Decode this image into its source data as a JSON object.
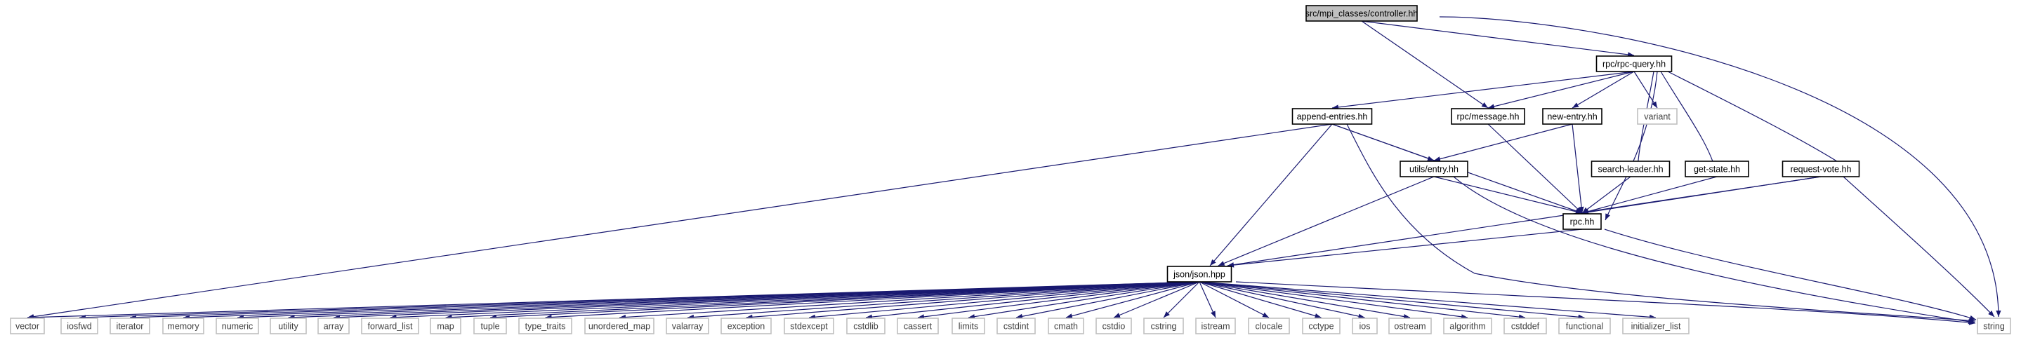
{
  "graph": {
    "edge_color": "#191970",
    "nodes": [
      {
        "id": "controller",
        "label": "src/mpi_classes/controller.hh",
        "kind": "focus"
      },
      {
        "id": "rpc_query",
        "label": "rpc/rpc-query.hh",
        "kind": "header"
      },
      {
        "id": "append_entries",
        "label": "append-entries.hh",
        "kind": "header"
      },
      {
        "id": "rpc_message",
        "label": "rpc/message.hh",
        "kind": "header"
      },
      {
        "id": "new_entry",
        "label": "new-entry.hh",
        "kind": "header"
      },
      {
        "id": "variant",
        "label": "variant",
        "kind": "external"
      },
      {
        "id": "utils_entry",
        "label": "utils/entry.hh",
        "kind": "header"
      },
      {
        "id": "search_leader",
        "label": "search-leader.hh",
        "kind": "header"
      },
      {
        "id": "get_state",
        "label": "get-state.hh",
        "kind": "header"
      },
      {
        "id": "request_vote",
        "label": "request-vote.hh",
        "kind": "header"
      },
      {
        "id": "rpc",
        "label": "rpc.hh",
        "kind": "header"
      },
      {
        "id": "json",
        "label": "json/json.hpp",
        "kind": "header"
      },
      {
        "id": "vector",
        "label": "vector",
        "kind": "external"
      },
      {
        "id": "iosfwd",
        "label": "iosfwd",
        "kind": "external"
      },
      {
        "id": "iterator",
        "label": "iterator",
        "kind": "external"
      },
      {
        "id": "memory",
        "label": "memory",
        "kind": "external"
      },
      {
        "id": "numeric",
        "label": "numeric",
        "kind": "external"
      },
      {
        "id": "utility",
        "label": "utility",
        "kind": "external"
      },
      {
        "id": "array",
        "label": "array",
        "kind": "external"
      },
      {
        "id": "forward_list",
        "label": "forward_list",
        "kind": "external"
      },
      {
        "id": "map",
        "label": "map",
        "kind": "external"
      },
      {
        "id": "tuple",
        "label": "tuple",
        "kind": "external"
      },
      {
        "id": "type_traits",
        "label": "type_traits",
        "kind": "external"
      },
      {
        "id": "unordered_map",
        "label": "unordered_map",
        "kind": "external"
      },
      {
        "id": "valarray",
        "label": "valarray",
        "kind": "external"
      },
      {
        "id": "exception",
        "label": "exception",
        "kind": "external"
      },
      {
        "id": "stdexcept",
        "label": "stdexcept",
        "kind": "external"
      },
      {
        "id": "cstdlib",
        "label": "cstdlib",
        "kind": "external"
      },
      {
        "id": "cassert",
        "label": "cassert",
        "kind": "external"
      },
      {
        "id": "limits",
        "label": "limits",
        "kind": "external"
      },
      {
        "id": "cstdint",
        "label": "cstdint",
        "kind": "external"
      },
      {
        "id": "cmath",
        "label": "cmath",
        "kind": "external"
      },
      {
        "id": "cstdio",
        "label": "cstdio",
        "kind": "external"
      },
      {
        "id": "cstring",
        "label": "cstring",
        "kind": "external"
      },
      {
        "id": "istream",
        "label": "istream",
        "kind": "external"
      },
      {
        "id": "clocale",
        "label": "clocale",
        "kind": "external"
      },
      {
        "id": "cctype",
        "label": "cctype",
        "kind": "external"
      },
      {
        "id": "ios",
        "label": "ios",
        "kind": "external"
      },
      {
        "id": "ostream",
        "label": "ostream",
        "kind": "external"
      },
      {
        "id": "algorithm",
        "label": "algorithm",
        "kind": "external"
      },
      {
        "id": "cstddef",
        "label": "cstddef",
        "kind": "external"
      },
      {
        "id": "functional",
        "label": "functional",
        "kind": "external"
      },
      {
        "id": "initializer_list",
        "label": "initializer_list",
        "kind": "external"
      },
      {
        "id": "string",
        "label": "string",
        "kind": "external"
      }
    ],
    "edges": [
      [
        "controller",
        "rpc_query"
      ],
      [
        "controller",
        "rpc_message"
      ],
      [
        "controller",
        "string"
      ],
      [
        "rpc_query",
        "append_entries"
      ],
      [
        "rpc_query",
        "rpc_message"
      ],
      [
        "rpc_query",
        "new_entry"
      ],
      [
        "rpc_query",
        "variant"
      ],
      [
        "rpc_query",
        "search_leader"
      ],
      [
        "rpc_query",
        "get_state"
      ],
      [
        "rpc_query",
        "request_vote"
      ],
      [
        "rpc_query",
        "rpc"
      ],
      [
        "append_entries",
        "utils_entry"
      ],
      [
        "append_entries",
        "rpc"
      ],
      [
        "append_entries",
        "json"
      ],
      [
        "append_entries",
        "vector"
      ],
      [
        "append_entries",
        "string"
      ],
      [
        "rpc_message",
        "rpc"
      ],
      [
        "new_entry",
        "utils_entry"
      ],
      [
        "new_entry",
        "rpc"
      ],
      [
        "utils_entry",
        "rpc"
      ],
      [
        "utils_entry",
        "json"
      ],
      [
        "utils_entry",
        "string"
      ],
      [
        "search_leader",
        "rpc"
      ],
      [
        "get_state",
        "rpc"
      ],
      [
        "request_vote",
        "rpc"
      ],
      [
        "request_vote",
        "json"
      ],
      [
        "request_vote",
        "string"
      ],
      [
        "rpc",
        "json"
      ],
      [
        "rpc",
        "string"
      ],
      [
        "json",
        "vector"
      ],
      [
        "json",
        "iosfwd"
      ],
      [
        "json",
        "iterator"
      ],
      [
        "json",
        "memory"
      ],
      [
        "json",
        "numeric"
      ],
      [
        "json",
        "utility"
      ],
      [
        "json",
        "array"
      ],
      [
        "json",
        "forward_list"
      ],
      [
        "json",
        "map"
      ],
      [
        "json",
        "tuple"
      ],
      [
        "json",
        "type_traits"
      ],
      [
        "json",
        "unordered_map"
      ],
      [
        "json",
        "valarray"
      ],
      [
        "json",
        "exception"
      ],
      [
        "json",
        "stdexcept"
      ],
      [
        "json",
        "cstdlib"
      ],
      [
        "json",
        "cassert"
      ],
      [
        "json",
        "limits"
      ],
      [
        "json",
        "cstdint"
      ],
      [
        "json",
        "cmath"
      ],
      [
        "json",
        "cstdio"
      ],
      [
        "json",
        "cstring"
      ],
      [
        "json",
        "istream"
      ],
      [
        "json",
        "clocale"
      ],
      [
        "json",
        "cctype"
      ],
      [
        "json",
        "ios"
      ],
      [
        "json",
        "ostream"
      ],
      [
        "json",
        "algorithm"
      ],
      [
        "json",
        "cstddef"
      ],
      [
        "json",
        "functional"
      ],
      [
        "json",
        "initializer_list"
      ],
      [
        "json",
        "string"
      ]
    ]
  }
}
